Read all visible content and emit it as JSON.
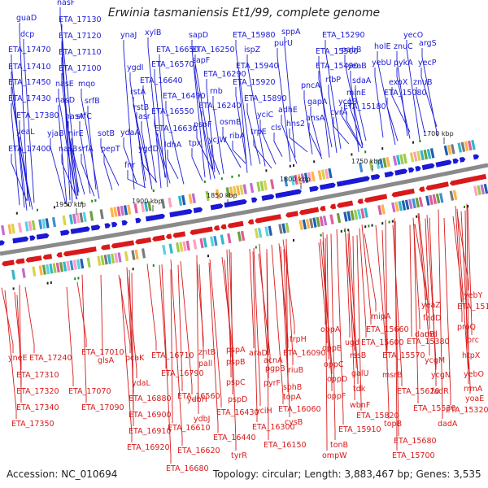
{
  "title": "Erwinia tasmaniensis Et1/99, complete genome",
  "footer": {
    "accession": "Accession: NC_010694",
    "summary": "Topology: circular; Length: 3,883,467 bp; Genes: 3,535"
  },
  "colors": {
    "forward": "#1a1ad6",
    "reverse": "#d81a1a",
    "backbone": "#888888"
  },
  "kbp_labels": [
    "1950 kbp",
    "1900 kbp",
    "1850 kbp",
    "1800 kbp",
    "1750 kbp",
    "1700 kbp"
  ],
  "top_genes": [
    "guaD",
    "dcp",
    "ETA_17470",
    "ETA_17410",
    "ETA_17450",
    "ETA_17430",
    "ETA_17380",
    "yeaL",
    "ETA_17400",
    "nasF",
    "ETA_17130",
    "ETA_17120",
    "ETA_17110",
    "ETA_17100",
    "nasE",
    "nasD",
    "nasA",
    "nirE",
    "nasB",
    "mqo",
    "srfB",
    "srfC",
    "srfA",
    "yjaB",
    "sotB",
    "pepT",
    "ynaJ",
    "xylB",
    "ygdI",
    "rstA",
    "rstB",
    "asr",
    "ydaA",
    "ygdD",
    "fnr",
    "ETA_16650",
    "ETA_16570",
    "ETA_16640",
    "ETA_16550",
    "ETA_16490",
    "ETA_16630",
    "ldhA",
    "sapD",
    "sapF",
    "ETA_16250",
    "ETA_16290",
    "rnb",
    "ETA_16240",
    "pspF",
    "osmB",
    "ycjW",
    "tpx",
    "ribA",
    "ETA_15980",
    "ispZ",
    "ETA_15940",
    "ETA_15920",
    "ETA_15890",
    "yciC",
    "trpE",
    "cls",
    "sppA",
    "purU",
    "adhE",
    "hns2",
    "pncA",
    "gapA",
    "ansA",
    "cvrA",
    "ycgB",
    "rfbP",
    "ETA_15500",
    "ETA_15490",
    "ETA_15290",
    "pabB",
    "yeaB",
    "sdaA",
    "minE",
    "ETA_15180",
    "holE",
    "yebU",
    "znuC",
    "pykA",
    "argS",
    "exoX",
    "znuB",
    "ETA_15080",
    "yecO",
    "yecP"
  ],
  "bottom_genes": [
    "yneE",
    "ETA_17240",
    "ETA_17310",
    "ETA_17320",
    "ETA_17340",
    "ETA_17350",
    "ETA_17010",
    "ETA_17070",
    "ETA_17090",
    "glsA",
    "pcaK",
    "ydaL",
    "ETA_16880",
    "ETA_16900",
    "ETA_16910",
    "ETA_16920",
    "ETA_16710",
    "ETA_16790",
    "ETA_16560",
    "ETA_16610",
    "ETA_16620",
    "ETA_16680",
    "zntB",
    "pall",
    "ydbJ",
    "ydbH",
    "pspA",
    "pspB",
    "pspC",
    "pspD",
    "ETA_16430",
    "ETA_16440",
    "tyrR",
    "araD",
    "acnA",
    "pgpB",
    "pyrF",
    "yciH",
    "ETA_16300",
    "ETA_16150",
    "trpH",
    "ETA_16090",
    "riuB",
    "sohB",
    "topA",
    "ETA_16060",
    "cysB",
    "oppA",
    "oppB",
    "oppC",
    "oppD",
    "oppF",
    "ETA_15910",
    "tonB",
    "ompW",
    "mipA",
    "ETA_15660",
    "ETA_15600",
    "ugd",
    "rssB",
    "galU",
    "tdk",
    "wbnF",
    "ETA_15820",
    "ETA_15570",
    "msrB",
    "ETA_15620",
    "topB",
    "ETA_15680",
    "ETA_15700",
    "yebY",
    "ETA_15140",
    "proQ",
    "prc",
    "htpX",
    "yeaZ",
    "fadD",
    "dadB",
    "rnd",
    "ETA_15380",
    "ycgM",
    "ycgN",
    "fadR",
    "ETA_15530",
    "yebO",
    "rrmA",
    "yoaE",
    "ETA_15320",
    "dadA"
  ]
}
